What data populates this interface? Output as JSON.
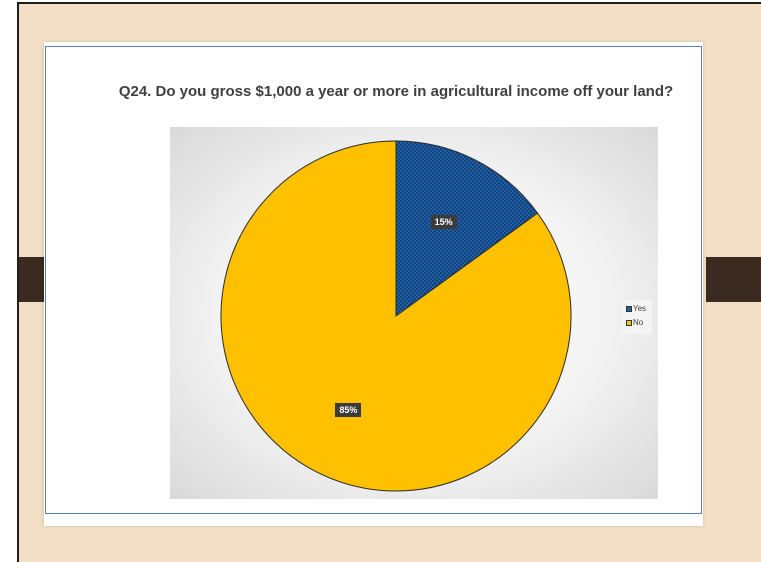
{
  "colors": {
    "yes": "#1f5fa8",
    "no": "#ffc000",
    "background": "#f2dfc5"
  },
  "chart_data": {
    "type": "pie",
    "title": "Q24. Do you gross $1,000 a year or more in agricultural income off your land?",
    "categories": [
      "Yes",
      "No"
    ],
    "values": [
      15,
      85
    ],
    "labels": [
      "15%",
      "85%"
    ],
    "legend": {
      "placement": "right",
      "entries": [
        "Yes",
        "No"
      ]
    }
  }
}
